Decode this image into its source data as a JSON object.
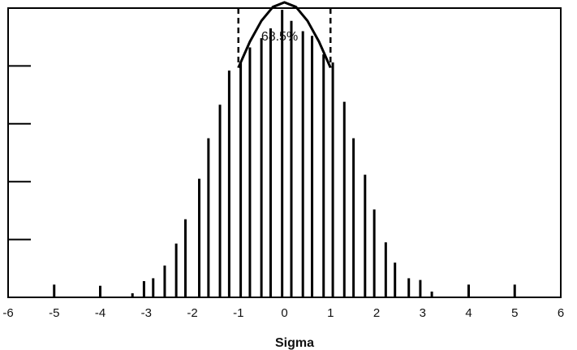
{
  "chart_data": {
    "type": "bar",
    "title": "",
    "xlabel": "Sigma",
    "ylabel": "",
    "xlim": [
      -6,
      6
    ],
    "ylim": [
      0,
      5
    ],
    "grid": false,
    "x_ticks": [
      -6,
      -5,
      -4,
      -3,
      -2,
      -1,
      0,
      1,
      2,
      3,
      4,
      5,
      6
    ],
    "y_ticks": [
      1,
      2,
      3,
      4,
      5
    ],
    "series": [
      {
        "x": [
          -5,
          -4,
          -3.3,
          -3.05,
          -2.85,
          -2.6,
          -2.35,
          -2.15,
          -1.85,
          -1.65,
          -1.4,
          -1.2,
          -0.95,
          -0.75,
          -0.5,
          -0.3,
          -0.05,
          0.15,
          0.4,
          0.6,
          0.85,
          1.05,
          1.3,
          1.5,
          1.75,
          1.95,
          2.2,
          2.4,
          2.7,
          2.95,
          3.2,
          4,
          5
        ],
        "values": [
          0.22,
          0.2,
          0.07,
          0.28,
          0.33,
          0.55,
          0.93,
          1.35,
          2.05,
          2.75,
          3.33,
          3.92,
          4.06,
          4.32,
          4.48,
          4.65,
          4.97,
          4.78,
          4.6,
          4.52,
          4.2,
          4.06,
          3.38,
          2.75,
          2.12,
          1.52,
          0.95,
          0.6,
          0.33,
          0.3,
          0.1,
          0.22,
          0.22
        ]
      }
    ],
    "curve": {
      "x": [
        -1,
        -0.75,
        -0.5,
        -0.25,
        0,
        0.25,
        0.5,
        0.75,
        1
      ],
      "y": [
        3.97,
        4.42,
        4.78,
        5.02,
        5.1,
        5.02,
        4.78,
        4.42,
        3.97
      ]
    },
    "annotations": [
      {
        "text": "68.5%",
        "x": 0
      }
    ],
    "reference_lines": [
      {
        "x": -1,
        "style": "dashed"
      },
      {
        "x": 1,
        "style": "dashed"
      }
    ]
  }
}
